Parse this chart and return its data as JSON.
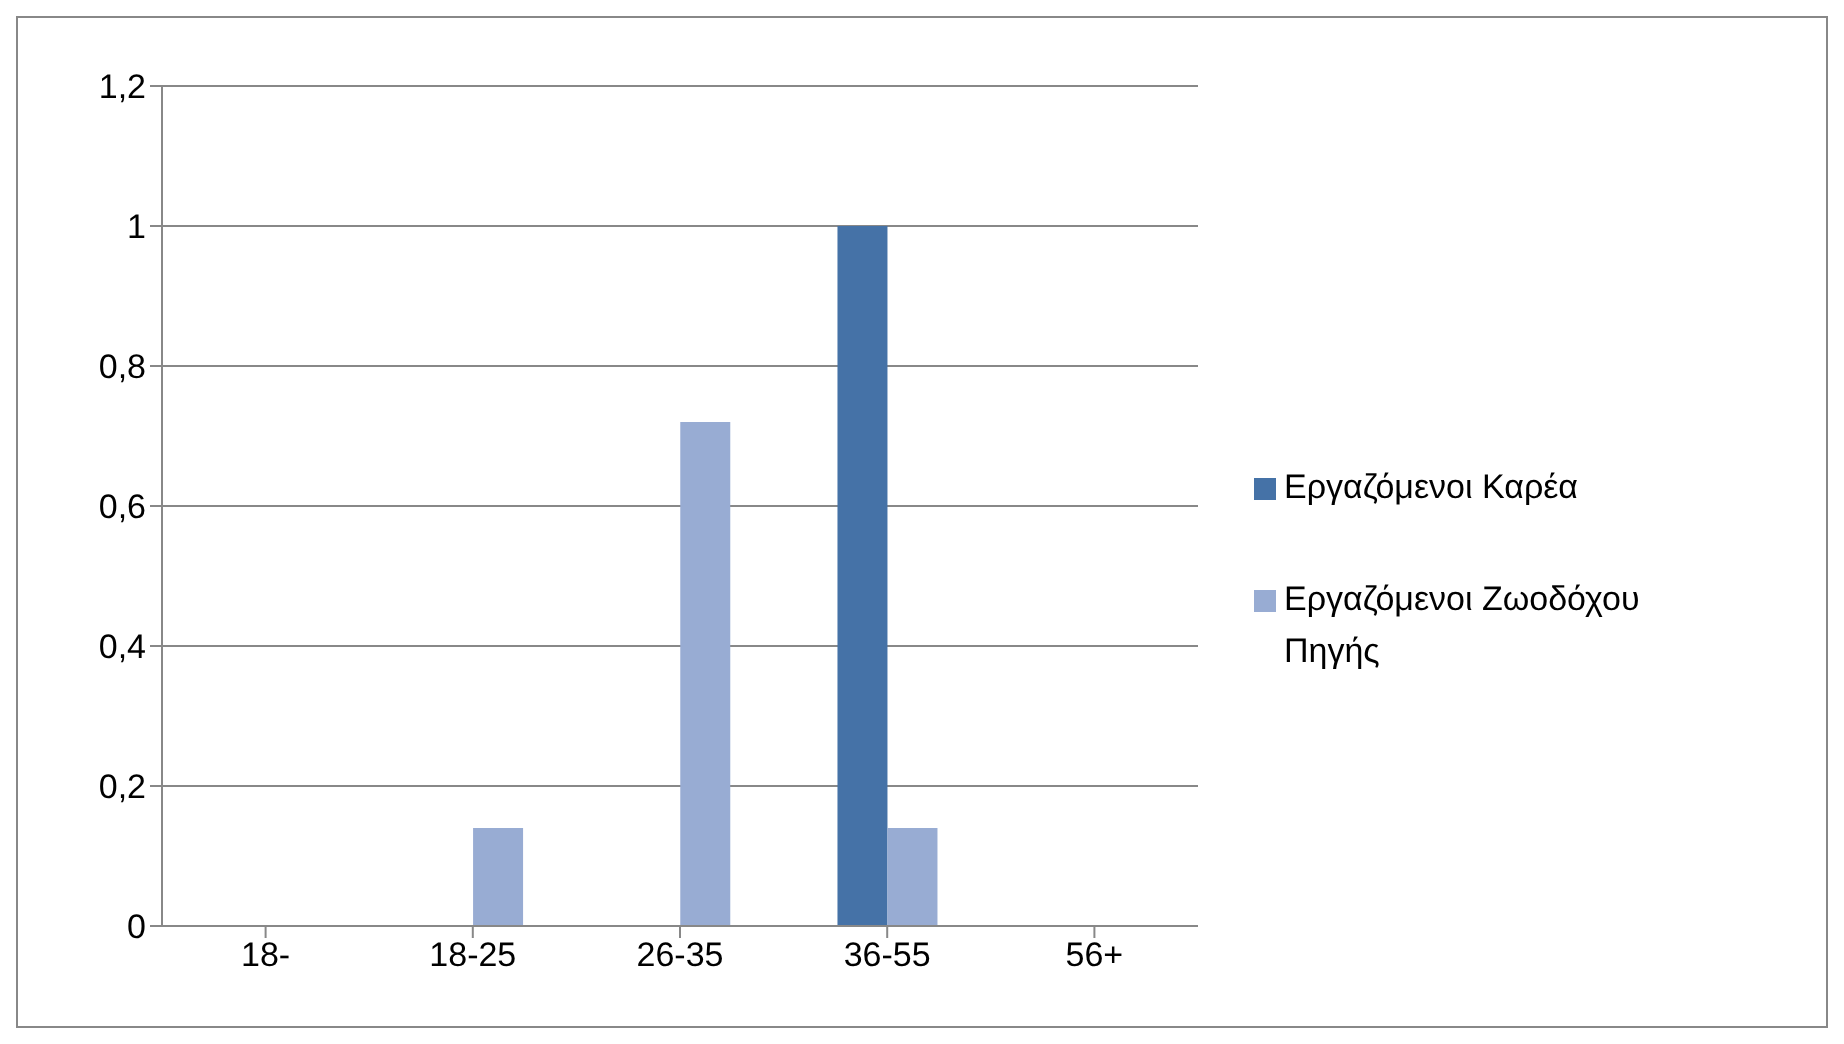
{
  "chart_data": {
    "type": "bar",
    "categories": [
      "18-",
      "18-25",
      "26-35",
      "36-55",
      "56+"
    ],
    "series": [
      {
        "name": "Εργαζόμενοι Καρέα",
        "color": "#4572a7",
        "values": [
          0,
          0,
          0,
          1,
          0
        ]
      },
      {
        "name": "Εργαζόμενοι Ζωοδόχου Πηγής",
        "color": "#98acd3",
        "values": [
          0,
          0.14,
          0.72,
          0.14,
          0
        ]
      }
    ],
    "ylim": [
      0,
      1.2
    ],
    "yticks": [
      0,
      {
        "value": 0.2,
        "label": "0,2"
      },
      {
        "value": 0.4,
        "label": "0,4"
      },
      {
        "value": 0.6,
        "label": "0,6"
      },
      {
        "value": 0.8,
        "label": "0,8"
      },
      1,
      {
        "value": 1.2,
        "label": "1,2"
      }
    ],
    "grid": "y",
    "legend": "right"
  }
}
